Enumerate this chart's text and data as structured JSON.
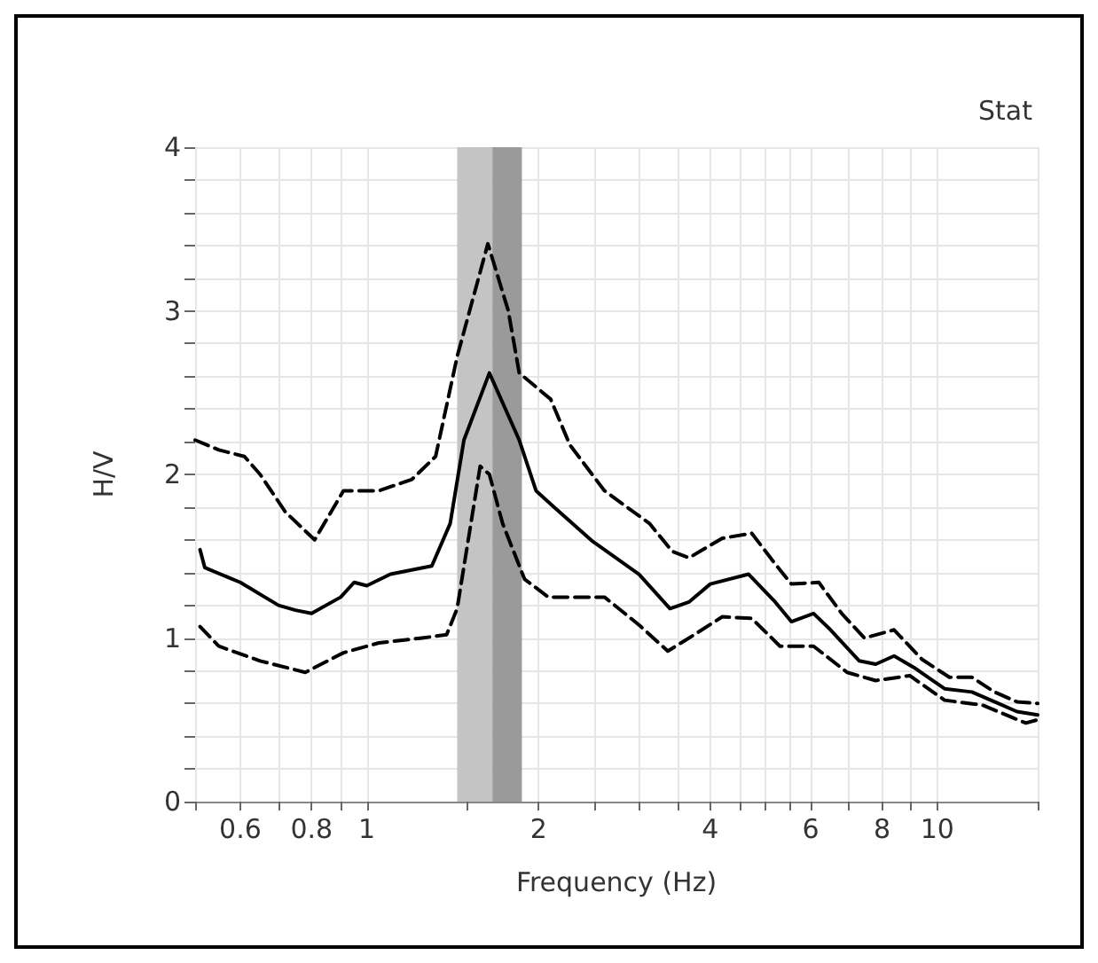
{
  "chart_data": {
    "type": "line",
    "title": "Stat",
    "xlabel": "Frequency (Hz)",
    "ylabel": "H/V",
    "log": "x",
    "xlim": [
      0.5,
      15
    ],
    "xticks": [
      {
        "value": 0.5,
        "label": null
      },
      0.6,
      {
        "value": 0.7,
        "label": null
      },
      0.8,
      {
        "value": 0.9,
        "label": null
      },
      1,
      {
        "value": 1.5,
        "label": null
      },
      2,
      {
        "value": 2.5,
        "label": null
      },
      {
        "value": 3,
        "label": null
      },
      {
        "value": 3.5,
        "label": null
      },
      4,
      {
        "value": 4.5,
        "label": null
      },
      {
        "value": 5,
        "label": null
      },
      {
        "value": 5.5,
        "label": null
      },
      6,
      {
        "value": 7,
        "label": null
      },
      8,
      {
        "value": 9,
        "label": null
      },
      10,
      {
        "value": 15,
        "label": null
      }
    ],
    "ylim": [
      0,
      4
    ],
    "yticks": [
      0,
      {
        "value": 0.2,
        "label": null
      },
      {
        "value": 0.4,
        "label": null
      },
      {
        "value": 0.6,
        "label": null
      },
      {
        "value": 0.8,
        "label": null
      },
      1,
      {
        "value": 1.2,
        "label": null
      },
      {
        "value": 1.4,
        "label": null
      },
      {
        "value": 1.6,
        "label": null
      },
      {
        "value": 1.8,
        "label": null
      },
      2,
      {
        "value": 2.2,
        "label": null
      },
      {
        "value": 2.4,
        "label": null
      },
      {
        "value": 2.6,
        "label": null
      },
      {
        "value": 2.8,
        "label": null
      },
      3,
      {
        "value": 3.2,
        "label": null
      },
      {
        "value": 3.4,
        "label": null
      },
      {
        "value": 3.6,
        "label": null
      },
      {
        "value": 3.8,
        "label": null
      },
      4
    ],
    "grid": true,
    "marker": "none",
    "bands": [
      {
        "axis": "x",
        "from": 1.44,
        "to": 1.66,
        "color": "#c4c4c4"
      },
      {
        "axis": "x",
        "from": 1.66,
        "to": 1.87,
        "color": "#9a9a9a"
      }
    ],
    "series": [
      {
        "color": "#000000",
        "line_style": "solid",
        "x": [
          0.51,
          0.52,
          0.6,
          0.7,
          0.75,
          0.8,
          0.9,
          0.95,
          1.0,
          1.1,
          1.3,
          1.4,
          1.48,
          1.64,
          1.85,
          1.98,
          2.13,
          2.49,
          3.0,
          3.4,
          3.67,
          4.0,
          4.67,
          5.2,
          5.55,
          6.07,
          6.5,
          7.3,
          7.8,
          8.4,
          9.1,
          10.3,
          11.5,
          12.6,
          13.8,
          15
        ],
        "values": [
          1.54,
          1.43,
          1.34,
          1.2,
          1.17,
          1.15,
          1.25,
          1.34,
          1.32,
          1.39,
          1.44,
          1.7,
          2.21,
          2.62,
          2.21,
          1.9,
          1.8,
          1.59,
          1.39,
          1.18,
          1.22,
          1.33,
          1.39,
          1.22,
          1.1,
          1.15,
          1.05,
          0.86,
          0.84,
          0.89,
          0.82,
          0.69,
          0.67,
          0.61,
          0.55,
          0.53
        ]
      },
      {
        "color": "#000000",
        "line_style": "dashed",
        "x": [
          0.5,
          0.55,
          0.61,
          0.65,
          0.72,
          0.81,
          0.91,
          1.05,
          1.2,
          1.32,
          1.44,
          1.63,
          1.77,
          1.85,
          2.1,
          2.27,
          2.61,
          3.13,
          3.43,
          3.67,
          4.2,
          4.73,
          5.18,
          5.55,
          6.2,
          6.8,
          7.45,
          8.4,
          9.4,
          10.5,
          11.5,
          12.6,
          13.8,
          15
        ],
        "values": [
          2.21,
          2.15,
          2.11,
          2.0,
          1.77,
          1.6,
          1.9,
          1.9,
          1.97,
          2.11,
          2.72,
          3.41,
          3.0,
          2.62,
          2.46,
          2.18,
          1.9,
          1.7,
          1.53,
          1.49,
          1.61,
          1.64,
          1.46,
          1.33,
          1.34,
          1.15,
          1.0,
          1.05,
          0.87,
          0.76,
          0.76,
          0.67,
          0.61,
          0.6
        ]
      },
      {
        "color": "#000000",
        "line_style": "dashed",
        "x": [
          0.51,
          0.55,
          0.65,
          0.78,
          0.91,
          1.05,
          1.25,
          1.38,
          1.44,
          1.58,
          1.64,
          1.73,
          1.89,
          2.08,
          2.23,
          2.61,
          3.0,
          3.37,
          3.75,
          4.2,
          4.73,
          5.3,
          6.07,
          6.95,
          7.8,
          8.95,
          10.3,
          12.0,
          14.3,
          15
        ],
        "values": [
          1.07,
          0.95,
          0.86,
          0.79,
          0.91,
          0.97,
          1.0,
          1.02,
          1.18,
          2.05,
          2.0,
          1.7,
          1.36,
          1.25,
          1.25,
          1.25,
          1.08,
          0.92,
          1.02,
          1.13,
          1.12,
          0.95,
          0.95,
          0.79,
          0.74,
          0.77,
          0.62,
          0.59,
          0.48,
          0.5
        ]
      }
    ]
  }
}
